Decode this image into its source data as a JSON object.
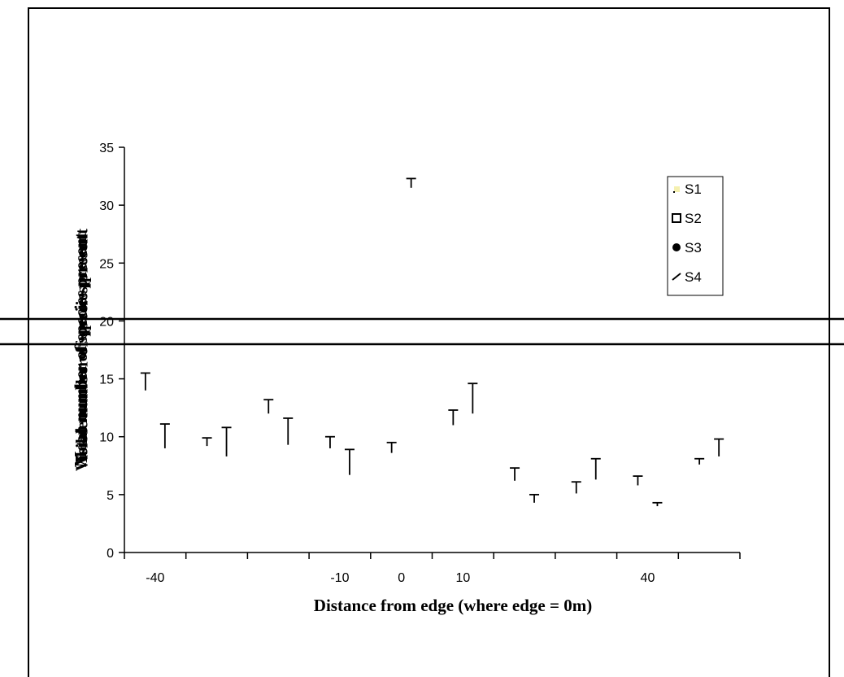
{
  "chart_data": {
    "type": "scatter",
    "xlabel": "Distance from edge (where edge  = 0m)",
    "ylabel": "Mean number of species present",
    "ylabel_overlap": [
      "Mean number of species present",
      "Total number of species present",
      "Visible number of species present"
    ],
    "ylim": [
      0,
      35
    ],
    "yticks": [
      0,
      5,
      10,
      15,
      20,
      25,
      30,
      35
    ],
    "x_categories": [
      "-40",
      "-30",
      "-20",
      "-10",
      "0",
      "10",
      "20",
      "30",
      "40",
      "50"
    ],
    "x_tick_labels_shown": [
      "-40",
      "-10",
      "0",
      "10",
      "40"
    ],
    "grid": false,
    "legend_position": "top-right",
    "legend": [
      {
        "name": "S1",
        "marker": "dot",
        "color": "#f5f0b0"
      },
      {
        "name": "S2",
        "marker": "square",
        "color": "#000000"
      },
      {
        "name": "S3",
        "marker": "circle-filled",
        "color": "#000000"
      },
      {
        "name": "S4",
        "marker": "dash",
        "color": "#000000"
      }
    ],
    "series": [
      {
        "name": "S1",
        "x_index": [
          0,
          2,
          4,
          6,
          8
        ],
        "values": [
          14.0,
          12.0,
          8.6,
          6.2,
          5.8
        ],
        "error_plus": [
          1.5,
          1.2,
          0.9,
          1.1,
          0.8
        ]
      },
      {
        "name": "S2",
        "x_index": [
          0,
          2,
          4,
          6,
          8
        ],
        "values": [
          9.0,
          9.3,
          31.5,
          4.3,
          4.0
        ],
        "error_plus": [
          2.1,
          2.3,
          0.8,
          0.7,
          0.3
        ]
      },
      {
        "name": "S3",
        "x_index": [
          1,
          3,
          5,
          7,
          9
        ],
        "values": [
          9.2,
          9.0,
          11.0,
          5.1,
          7.6
        ],
        "error_plus": [
          0.7,
          1.0,
          1.3,
          1.0,
          0.5
        ]
      },
      {
        "name": "S4",
        "x_index": [
          1,
          3,
          5,
          7,
          9
        ],
        "values": [
          8.3,
          6.7,
          12.0,
          6.3,
          8.3
        ],
        "error_plus": [
          2.5,
          2.2,
          2.6,
          1.8,
          1.5
        ]
      }
    ]
  },
  "colors": {
    "axis": "#000000",
    "marker": "#000000",
    "s1_marker": "#f5f0b0",
    "background": "#ffffff"
  }
}
